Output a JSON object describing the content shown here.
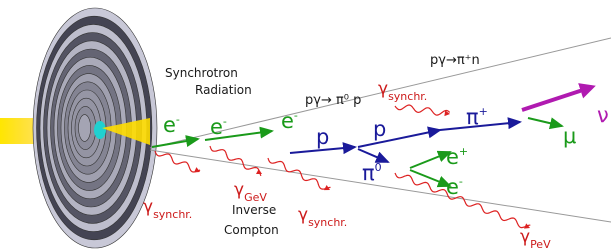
{
  "annotations": {
    "synchrotron_radiation": [
      "Synchrotron",
      "Radiation"
    ],
    "inverse_compton": [
      "Inverse",
      "Compton"
    ]
  },
  "reactions": [
    "pγ→ π⁰ p",
    "pγ→π⁺n"
  ],
  "particles": [
    {
      "symbol": "e",
      "sup": "-"
    },
    {
      "symbol": "e",
      "sup": "-"
    },
    {
      "symbol": "e",
      "sup": "-"
    },
    {
      "symbol": "p"
    },
    {
      "symbol": "p"
    },
    {
      "symbol": "π",
      "sup": "+"
    },
    {
      "symbol": "μ"
    },
    {
      "symbol": "ν"
    },
    {
      "symbol": "e",
      "sup": "+"
    },
    {
      "symbol": "e",
      "sup": "-"
    },
    {
      "symbol": "π",
      "sup": "0"
    },
    {
      "symbol": "γ",
      "sub": "synchr."
    },
    {
      "symbol": "γ",
      "sub": "synchr."
    },
    {
      "symbol": "γ",
      "sub": "GeV"
    },
    {
      "symbol": "γ",
      "sub": "synchr."
    },
    {
      "symbol": "γ",
      "sub": "PeV"
    }
  ]
}
